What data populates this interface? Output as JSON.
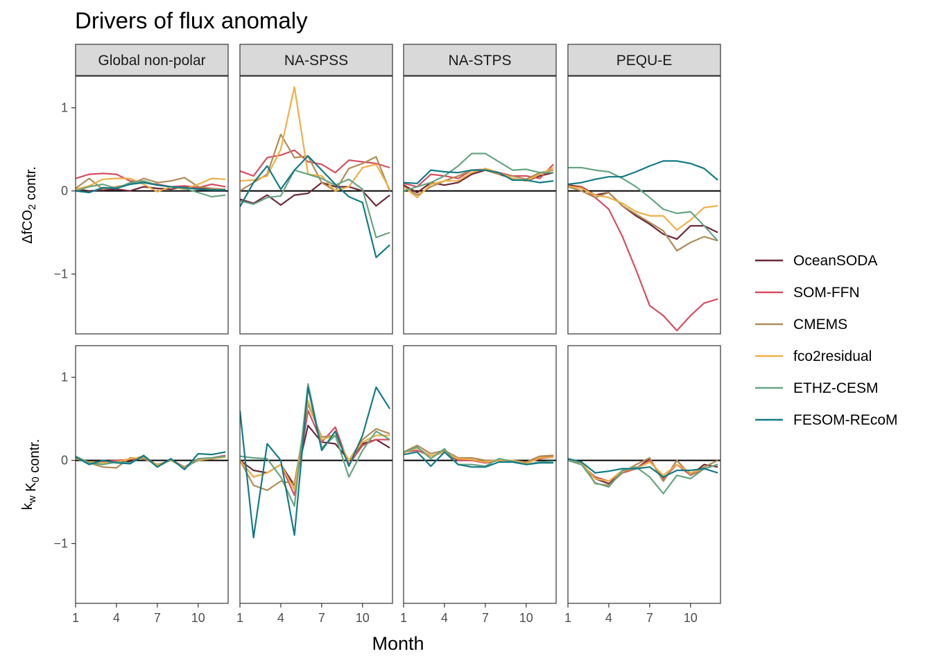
{
  "chart_data": {
    "type": "line",
    "title": "Drivers of flux anomaly",
    "xlabel": "Month",
    "x": [
      1,
      2,
      3,
      4,
      5,
      6,
      7,
      8,
      9,
      10,
      11,
      12
    ],
    "x_ticks": [
      1,
      4,
      7,
      10
    ],
    "y_ticks": [
      -1,
      0,
      1
    ],
    "ylim": [
      -1.72,
      1.38
    ],
    "facet_columns": [
      "Global non-polar",
      "NA-SPSS",
      "NA-STPS",
      "PEQU-E"
    ],
    "facet_rows": [
      {
        "id": "dfco2",
        "label_main": "ΔfCO",
        "label_sub": "2",
        "label_tail": " contr."
      },
      {
        "id": "kw",
        "label_main": "k",
        "label_sub": "w",
        "label_mid": " K",
        "label_sub2": "0",
        "label_tail": " contr."
      }
    ],
    "reference_line": 0,
    "legend_position": "right",
    "series": [
      {
        "name": "OceanSODA",
        "color": "#6b2737"
      },
      {
        "name": "SOM-FFN",
        "color": "#d64d60"
      },
      {
        "name": "CMEMS",
        "color": "#b08b56"
      },
      {
        "name": "fco2residual",
        "color": "#eeaf44"
      },
      {
        "name": "ETHZ-CESM",
        "color": "#67a482"
      },
      {
        "name": "FESOM-REcoM",
        "color": "#117a85"
      }
    ],
    "panels": {
      "dfco2": {
        "Global non-polar": {
          "OceanSODA": [
            0.02,
            0.0,
            0.01,
            0.02,
            0.0,
            0.05,
            0.03,
            0.02,
            0.05,
            0.03,
            0.02,
            0.01
          ],
          "SOM-FFN": [
            0.15,
            0.2,
            0.21,
            0.2,
            0.12,
            0.1,
            0.08,
            0.05,
            0.06,
            0.04,
            0.08,
            0.05
          ],
          "CMEMS": [
            0.03,
            0.15,
            0.02,
            0.05,
            0.08,
            0.15,
            0.1,
            0.12,
            0.16,
            0.05,
            0.03,
            0.02
          ],
          "fco2residual": [
            0.02,
            0.06,
            0.14,
            0.15,
            0.15,
            0.08,
            -0.01,
            0.05,
            0.02,
            0.08,
            0.15,
            0.14
          ],
          "ETHZ-CESM": [
            0.0,
            0.05,
            0.08,
            0.03,
            0.1,
            0.12,
            0.07,
            0.05,
            0.03,
            -0.02,
            -0.07,
            -0.05
          ],
          "FESOM-REcoM": [
            0.0,
            -0.02,
            0.04,
            0.03,
            0.08,
            0.1,
            0.07,
            0.05,
            0.04,
            0.02,
            0.01,
            0.01
          ]
        },
        "NA-SPSS": {
          "OceanSODA": [
            -0.1,
            -0.15,
            -0.05,
            -0.17,
            -0.05,
            -0.03,
            0.1,
            0.05,
            0.05,
            0.0,
            -0.18,
            -0.05
          ],
          "SOM-FFN": [
            0.24,
            0.18,
            0.4,
            0.43,
            0.49,
            0.35,
            0.32,
            0.22,
            0.37,
            0.35,
            0.33,
            0.28
          ],
          "CMEMS": [
            0.0,
            0.1,
            0.2,
            0.68,
            0.4,
            0.42,
            0.1,
            0.0,
            0.27,
            0.33,
            0.41,
            0.0
          ],
          "fco2residual": [
            0.12,
            0.13,
            0.18,
            0.5,
            1.25,
            0.2,
            0.18,
            0.0,
            0.05,
            0.28,
            0.32,
            0.02
          ],
          "ETHZ-CESM": [
            -0.12,
            -0.16,
            -0.08,
            -0.06,
            0.25,
            0.2,
            0.15,
            0.07,
            0.14,
            0.02,
            -0.56,
            -0.5
          ],
          "FESOM-REcoM": [
            -0.19,
            0.1,
            0.3,
            0.02,
            0.25,
            0.42,
            0.25,
            0.08,
            -0.07,
            -0.14,
            -0.8,
            -0.65
          ]
        },
        "NA-STPS": {
          "OceanSODA": [
            0.07,
            -0.02,
            0.1,
            0.07,
            0.1,
            0.2,
            0.25,
            0.2,
            0.15,
            0.12,
            0.18,
            0.22
          ],
          "SOM-FFN": [
            0.09,
            0.05,
            0.2,
            0.18,
            0.15,
            0.25,
            0.26,
            0.22,
            0.18,
            0.18,
            0.15,
            0.32
          ],
          "CMEMS": [
            0.05,
            -0.05,
            0.05,
            0.12,
            0.18,
            0.25,
            0.25,
            0.2,
            0.18,
            0.14,
            0.22,
            0.25
          ],
          "fco2residual": [
            0.05,
            -0.08,
            0.08,
            0.12,
            0.12,
            0.22,
            0.27,
            0.22,
            0.15,
            0.12,
            0.2,
            0.28
          ],
          "ETHZ-CESM": [
            0.0,
            0.05,
            0.1,
            0.18,
            0.3,
            0.45,
            0.45,
            0.35,
            0.25,
            0.26,
            0.22,
            0.22
          ],
          "FESOM-REcoM": [
            0.1,
            0.09,
            0.25,
            0.23,
            0.22,
            0.25,
            0.25,
            0.22,
            0.13,
            0.13,
            0.1,
            0.12
          ]
        },
        "PEQU-E": {
          "OceanSODA": [
            0.07,
            0.05,
            -0.05,
            -0.02,
            -0.18,
            -0.3,
            -0.4,
            -0.52,
            -0.58,
            -0.42,
            -0.42,
            -0.5
          ],
          "SOM-FFN": [
            0.05,
            0.05,
            -0.08,
            -0.22,
            -0.55,
            -0.95,
            -1.38,
            -1.5,
            -1.68,
            -1.5,
            -1.35,
            -1.3
          ],
          "CMEMS": [
            0.05,
            0.0,
            -0.08,
            -0.02,
            -0.18,
            -0.28,
            -0.38,
            -0.48,
            -0.72,
            -0.62,
            -0.55,
            -0.6
          ],
          "fco2residual": [
            0.06,
            0.03,
            -0.05,
            -0.08,
            -0.15,
            -0.25,
            -0.3,
            -0.3,
            -0.47,
            -0.35,
            -0.2,
            -0.18
          ],
          "ETHZ-CESM": [
            0.28,
            0.28,
            0.25,
            0.23,
            0.15,
            0.05,
            -0.08,
            -0.22,
            -0.27,
            -0.25,
            -0.42,
            -0.6
          ],
          "FESOM-REcoM": [
            0.08,
            0.1,
            0.14,
            0.17,
            0.17,
            0.23,
            0.3,
            0.36,
            0.36,
            0.33,
            0.27,
            0.13
          ]
        }
      },
      "kw": {
        "Global non-polar": {
          "OceanSODA": [
            0.04,
            -0.02,
            -0.02,
            0.0,
            -0.02,
            0.05,
            -0.06,
            0.0,
            -0.08,
            0.0,
            0.02,
            0.05
          ],
          "SOM-FFN": [
            0.03,
            -0.03,
            -0.02,
            0.0,
            0.01,
            0.05,
            -0.06,
            0.01,
            -0.08,
            0.02,
            0.03,
            0.06
          ],
          "CMEMS": [
            0.03,
            -0.03,
            -0.08,
            -0.09,
            0.03,
            0.02,
            -0.05,
            0.0,
            -0.08,
            0.0,
            0.02,
            0.05
          ],
          "fco2residual": [
            0.02,
            -0.02,
            -0.03,
            -0.02,
            0.02,
            0.04,
            -0.06,
            0.0,
            -0.09,
            0.01,
            0.02,
            0.04
          ],
          "ETHZ-CESM": [
            0.05,
            -0.03,
            -0.05,
            -0.02,
            -0.03,
            0.05,
            -0.08,
            0.01,
            -0.1,
            0.02,
            0.03,
            0.05
          ],
          "FESOM-REcoM": [
            0.04,
            -0.05,
            0.0,
            -0.03,
            -0.04,
            0.06,
            -0.08,
            0.02,
            -0.11,
            0.08,
            0.07,
            0.1
          ]
        },
        "NA-SPSS": {
          "OceanSODA": [
            0.0,
            -0.12,
            -0.15,
            -0.05,
            -0.3,
            0.42,
            0.22,
            0.2,
            0.0,
            0.2,
            0.25,
            0.15
          ],
          "SOM-FFN": [
            0.0,
            -0.2,
            -0.15,
            -0.05,
            -0.42,
            0.6,
            0.22,
            0.4,
            -0.05,
            0.18,
            0.25,
            0.25
          ],
          "CMEMS": [
            0.0,
            -0.3,
            -0.36,
            -0.25,
            -0.28,
            0.68,
            0.28,
            0.3,
            0.0,
            0.25,
            0.38,
            0.32
          ],
          "fco2residual": [
            0.0,
            -0.2,
            -0.15,
            -0.05,
            -0.35,
            0.72,
            0.25,
            0.3,
            0.0,
            0.22,
            0.3,
            0.3
          ],
          "ETHZ-CESM": [
            0.05,
            0.03,
            0.02,
            -0.2,
            -0.55,
            0.92,
            0.15,
            0.3,
            -0.2,
            0.12,
            0.35,
            0.25
          ],
          "FESOM-REcoM": [
            0.6,
            -0.93,
            0.2,
            0.0,
            -0.9,
            0.88,
            0.12,
            0.35,
            -0.07,
            0.3,
            0.88,
            0.62
          ]
        },
        "NA-STPS": {
          "OceanSODA": [
            0.1,
            0.15,
            0.05,
            0.1,
            0.02,
            0.0,
            -0.03,
            0.0,
            0.0,
            -0.03,
            0.03,
            0.05
          ],
          "SOM-FFN": [
            0.1,
            0.12,
            0.05,
            0.1,
            0.0,
            0.0,
            -0.03,
            0.0,
            0.0,
            -0.03,
            0.02,
            0.04
          ],
          "CMEMS": [
            0.1,
            0.18,
            0.08,
            0.12,
            0.03,
            0.03,
            0.0,
            0.0,
            0.0,
            -0.02,
            0.05,
            0.06
          ],
          "fco2residual": [
            0.09,
            0.15,
            0.05,
            0.1,
            0.02,
            0.01,
            -0.02,
            0.0,
            0.0,
            -0.04,
            0.03,
            0.04
          ],
          "ETHZ-CESM": [
            0.1,
            0.16,
            0.02,
            0.14,
            -0.05,
            -0.05,
            -0.07,
            0.02,
            -0.01,
            -0.05,
            -0.02,
            -0.01
          ],
          "FESOM-REcoM": [
            0.07,
            0.1,
            -0.07,
            0.1,
            -0.05,
            -0.08,
            -0.08,
            -0.02,
            -0.02,
            -0.05,
            -0.03,
            -0.03
          ]
        },
        "PEQU-E": {
          "OceanSODA": [
            0.0,
            -0.05,
            -0.22,
            -0.28,
            -0.15,
            -0.1,
            0.02,
            -0.25,
            0.0,
            -0.18,
            -0.05,
            -0.08
          ],
          "SOM-FFN": [
            0.0,
            -0.05,
            -0.2,
            -0.25,
            -0.15,
            -0.1,
            0.0,
            -0.22,
            -0.05,
            -0.18,
            -0.1,
            -0.05
          ],
          "CMEMS": [
            0.0,
            -0.02,
            -0.28,
            -0.3,
            -0.15,
            -0.05,
            0.03,
            -0.25,
            0.0,
            -0.18,
            -0.08,
            0.0
          ],
          "fco2residual": [
            0.0,
            -0.03,
            -0.22,
            -0.25,
            -0.12,
            -0.1,
            -0.02,
            -0.18,
            -0.05,
            -0.15,
            -0.1,
            -0.05
          ],
          "ETHZ-CESM": [
            0.0,
            -0.05,
            -0.27,
            -0.32,
            -0.12,
            -0.08,
            -0.2,
            -0.4,
            -0.18,
            -0.22,
            -0.1,
            -0.05
          ],
          "FESOM-REcoM": [
            0.02,
            -0.02,
            -0.15,
            -0.13,
            -0.1,
            -0.1,
            -0.08,
            -0.2,
            -0.12,
            -0.12,
            -0.1,
            -0.15
          ]
        }
      }
    }
  }
}
